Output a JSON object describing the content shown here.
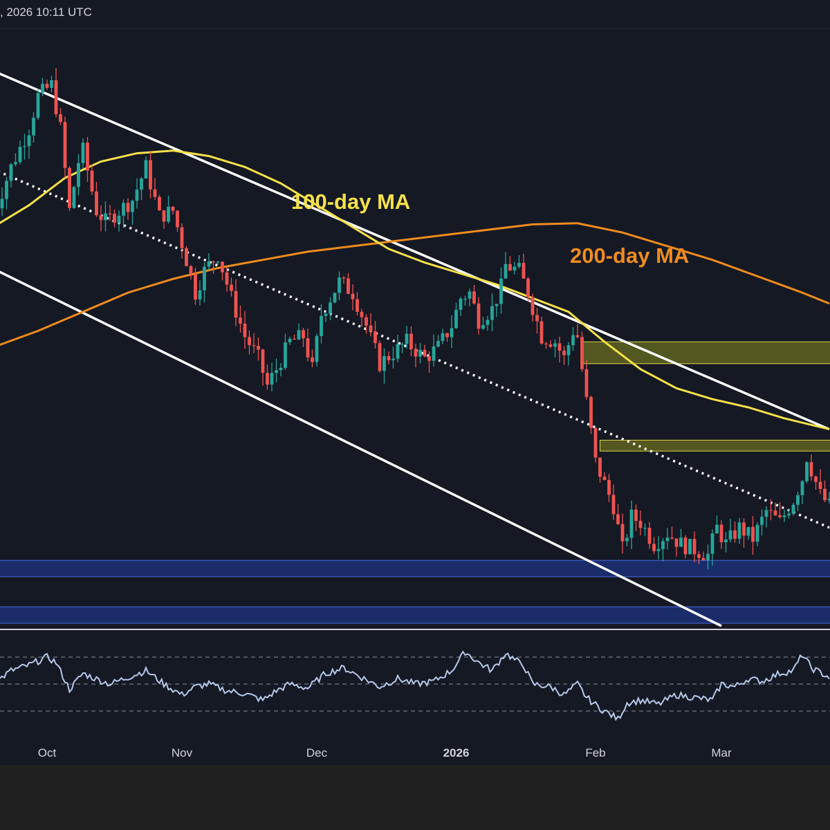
{
  "header": {
    "timestamp_text": ", 2026 10:11 UTC"
  },
  "annotations": {
    "ma100_label": "100-day MA",
    "ma200_label": "200-day MA"
  },
  "colors": {
    "background": "#151924",
    "bull": "#26a69a",
    "bear": "#ef5350",
    "ma100": "#f5e14a",
    "ma200": "#f08c1e",
    "channel": "#ffffff",
    "rsi": "#b7c9ea",
    "supply_zone": "#8a8a1e",
    "demand_zone": "#1e3a9a"
  },
  "chart_data": {
    "type": "candlestick",
    "title": "",
    "x_axis": {
      "ticks": [
        {
          "label": "Oct",
          "day": 12
        },
        {
          "label": "Nov",
          "day": 42
        },
        {
          "label": "Dec",
          "day": 72
        },
        {
          "label": "2026",
          "day": 103,
          "bold": true
        },
        {
          "label": "Feb",
          "day": 134
        },
        {
          "label": "Mar",
          "day": 162
        }
      ]
    },
    "y_axis": {
      "range": [
        0,
        100
      ]
    },
    "rsi_panel": {
      "range": [
        20,
        80
      ],
      "levels": [
        30,
        50,
        70
      ]
    },
    "anchors": [
      {
        "day": 0,
        "price": 75
      },
      {
        "day": 4,
        "price": 84
      },
      {
        "day": 8,
        "price": 91
      },
      {
        "day": 10,
        "price": 97
      },
      {
        "day": 13,
        "price": 99
      },
      {
        "day": 15,
        "price": 91
      },
      {
        "day": 17,
        "price": 76
      },
      {
        "day": 19,
        "price": 85
      },
      {
        "day": 20,
        "price": 87
      },
      {
        "day": 23,
        "price": 76
      },
      {
        "day": 25,
        "price": 74
      },
      {
        "day": 28,
        "price": 76
      },
      {
        "day": 31,
        "price": 78
      },
      {
        "day": 34,
        "price": 84
      },
      {
        "day": 37,
        "price": 75
      },
      {
        "day": 40,
        "price": 76
      },
      {
        "day": 42,
        "price": 70
      },
      {
        "day": 45,
        "price": 61
      },
      {
        "day": 47,
        "price": 65
      },
      {
        "day": 50,
        "price": 68
      },
      {
        "day": 53,
        "price": 60
      },
      {
        "day": 56,
        "price": 53
      },
      {
        "day": 59,
        "price": 49
      },
      {
        "day": 61,
        "price": 44
      },
      {
        "day": 63,
        "price": 47
      },
      {
        "day": 66,
        "price": 52
      },
      {
        "day": 69,
        "price": 53
      },
      {
        "day": 71,
        "price": 47
      },
      {
        "day": 73,
        "price": 57
      },
      {
        "day": 77,
        "price": 63
      },
      {
        "day": 80,
        "price": 61
      },
      {
        "day": 83,
        "price": 55
      },
      {
        "day": 86,
        "price": 48
      },
      {
        "day": 89,
        "price": 50
      },
      {
        "day": 92,
        "price": 52
      },
      {
        "day": 96,
        "price": 49
      },
      {
        "day": 99,
        "price": 51
      },
      {
        "day": 102,
        "price": 55
      },
      {
        "day": 104,
        "price": 60
      },
      {
        "day": 106,
        "price": 61
      },
      {
        "day": 108,
        "price": 56
      },
      {
        "day": 111,
        "price": 58
      },
      {
        "day": 113,
        "price": 62
      },
      {
        "day": 114,
        "price": 66
      },
      {
        "day": 117,
        "price": 65
      },
      {
        "day": 119,
        "price": 61
      },
      {
        "day": 122,
        "price": 53
      },
      {
        "day": 125,
        "price": 52
      },
      {
        "day": 127,
        "price": 49
      },
      {
        "day": 129,
        "price": 54
      },
      {
        "day": 130,
        "price": 53
      },
      {
        "day": 132,
        "price": 41
      },
      {
        "day": 134,
        "price": 30
      },
      {
        "day": 136,
        "price": 26
      },
      {
        "day": 138,
        "price": 22
      },
      {
        "day": 140,
        "price": 14
      },
      {
        "day": 142,
        "price": 20
      },
      {
        "day": 144,
        "price": 19
      },
      {
        "day": 147,
        "price": 15
      },
      {
        "day": 150,
        "price": 17
      },
      {
        "day": 153,
        "price": 15
      },
      {
        "day": 156,
        "price": 14
      },
      {
        "day": 159,
        "price": 13
      },
      {
        "day": 161,
        "price": 18
      },
      {
        "day": 163,
        "price": 15
      },
      {
        "day": 166,
        "price": 18
      },
      {
        "day": 169,
        "price": 16
      },
      {
        "day": 172,
        "price": 21
      },
      {
        "day": 175,
        "price": 19
      },
      {
        "day": 178,
        "price": 23
      },
      {
        "day": 180,
        "price": 27
      },
      {
        "day": 181,
        "price": 31
      },
      {
        "day": 184,
        "price": 24
      },
      {
        "day": 186,
        "price": 22
      }
    ],
    "ma100": [
      {
        "day": 0,
        "price": 73
      },
      {
        "day": 8,
        "price": 77
      },
      {
        "day": 16,
        "price": 82
      },
      {
        "day": 24,
        "price": 85
      },
      {
        "day": 32,
        "price": 86.5
      },
      {
        "day": 40,
        "price": 87
      },
      {
        "day": 48,
        "price": 86
      },
      {
        "day": 56,
        "price": 84
      },
      {
        "day": 64,
        "price": 81
      },
      {
        "day": 72,
        "price": 77
      },
      {
        "day": 80,
        "price": 73
      },
      {
        "day": 88,
        "price": 69
      },
      {
        "day": 96,
        "price": 66.5
      },
      {
        "day": 104,
        "price": 64.5
      },
      {
        "day": 112,
        "price": 62.5
      },
      {
        "day": 120,
        "price": 60
      },
      {
        "day": 128,
        "price": 57.5
      },
      {
        "day": 136,
        "price": 52
      },
      {
        "day": 144,
        "price": 47
      },
      {
        "day": 152,
        "price": 43.5
      },
      {
        "day": 160,
        "price": 41.5
      },
      {
        "day": 168,
        "price": 40
      },
      {
        "day": 176,
        "price": 38
      },
      {
        "day": 186,
        "price": 36
      }
    ],
    "ma200": [
      {
        "day": 0,
        "price": 51
      },
      {
        "day": 10,
        "price": 54
      },
      {
        "day": 20,
        "price": 57.5
      },
      {
        "day": 30,
        "price": 61
      },
      {
        "day": 40,
        "price": 63.5
      },
      {
        "day": 50,
        "price": 65.5
      },
      {
        "day": 60,
        "price": 67
      },
      {
        "day": 70,
        "price": 68.5
      },
      {
        "day": 80,
        "price": 69.5
      },
      {
        "day": 90,
        "price": 70.5
      },
      {
        "day": 100,
        "price": 71.5
      },
      {
        "day": 110,
        "price": 72.5
      },
      {
        "day": 120,
        "price": 73.5
      },
      {
        "day": 130,
        "price": 73.7
      },
      {
        "day": 140,
        "price": 72
      },
      {
        "day": 150,
        "price": 69.5
      },
      {
        "day": 160,
        "price": 67
      },
      {
        "day": 170,
        "price": 64
      },
      {
        "day": 180,
        "price": 61
      },
      {
        "day": 186,
        "price": 59
      }
    ],
    "channel": {
      "upper": [
        {
          "day": -4,
          "price": 103
        },
        {
          "day": 186,
          "price": 36
        }
      ],
      "lower": [
        {
          "day": -4,
          "price": 67
        },
        {
          "day": 162,
          "price": 0
        }
      ],
      "mid": [
        {
          "day": -4,
          "price": 85
        },
        {
          "day": 186,
          "price": 18
        }
      ]
    },
    "zones": [
      {
        "kind": "supply",
        "from_day": 131,
        "to_day": 190,
        "low": 48,
        "high": 52
      },
      {
        "kind": "supply",
        "from_day": 135,
        "to_day": 190,
        "low": 32,
        "high": 34
      },
      {
        "kind": "demand",
        "from_day": -4,
        "to_day": 190,
        "low": 9,
        "high": 12
      },
      {
        "kind": "demand",
        "from_day": -4,
        "to_day": 190,
        "low": 0.5,
        "high": 3.5
      }
    ],
    "rsi": [
      {
        "day": 0,
        "value": 50
      },
      {
        "day": 4,
        "value": 60
      },
      {
        "day": 8,
        "value": 64
      },
      {
        "day": 12,
        "value": 70
      },
      {
        "day": 14,
        "value": 66
      },
      {
        "day": 17,
        "value": 46
      },
      {
        "day": 20,
        "value": 58
      },
      {
        "day": 22,
        "value": 55
      },
      {
        "day": 26,
        "value": 50
      },
      {
        "day": 30,
        "value": 55
      },
      {
        "day": 34,
        "value": 60
      },
      {
        "day": 38,
        "value": 50
      },
      {
        "day": 42,
        "value": 42
      },
      {
        "day": 45,
        "value": 48
      },
      {
        "day": 48,
        "value": 50
      },
      {
        "day": 52,
        "value": 45
      },
      {
        "day": 56,
        "value": 43
      },
      {
        "day": 60,
        "value": 38
      },
      {
        "day": 63,
        "value": 45
      },
      {
        "day": 66,
        "value": 50
      },
      {
        "day": 70,
        "value": 47
      },
      {
        "day": 74,
        "value": 58
      },
      {
        "day": 78,
        "value": 62
      },
      {
        "day": 82,
        "value": 55
      },
      {
        "day": 86,
        "value": 48
      },
      {
        "day": 90,
        "value": 54
      },
      {
        "day": 94,
        "value": 50
      },
      {
        "day": 98,
        "value": 52
      },
      {
        "day": 102,
        "value": 60
      },
      {
        "day": 105,
        "value": 74
      },
      {
        "day": 108,
        "value": 66
      },
      {
        "day": 111,
        "value": 60
      },
      {
        "day": 114,
        "value": 73
      },
      {
        "day": 116,
        "value": 68
      },
      {
        "day": 118,
        "value": 64
      },
      {
        "day": 120,
        "value": 50
      },
      {
        "day": 124,
        "value": 48
      },
      {
        "day": 127,
        "value": 42
      },
      {
        "day": 130,
        "value": 50
      },
      {
        "day": 132,
        "value": 40
      },
      {
        "day": 135,
        "value": 32
      },
      {
        "day": 137,
        "value": 28
      },
      {
        "day": 139,
        "value": 24
      },
      {
        "day": 141,
        "value": 36
      },
      {
        "day": 144,
        "value": 38
      },
      {
        "day": 148,
        "value": 35
      },
      {
        "day": 152,
        "value": 42
      },
      {
        "day": 156,
        "value": 40
      },
      {
        "day": 160,
        "value": 38
      },
      {
        "day": 162,
        "value": 50
      },
      {
        "day": 165,
        "value": 48
      },
      {
        "day": 168,
        "value": 54
      },
      {
        "day": 171,
        "value": 52
      },
      {
        "day": 175,
        "value": 58
      },
      {
        "day": 178,
        "value": 60
      },
      {
        "day": 180,
        "value": 72
      },
      {
        "day": 182,
        "value": 62
      },
      {
        "day": 186,
        "value": 55
      }
    ]
  }
}
